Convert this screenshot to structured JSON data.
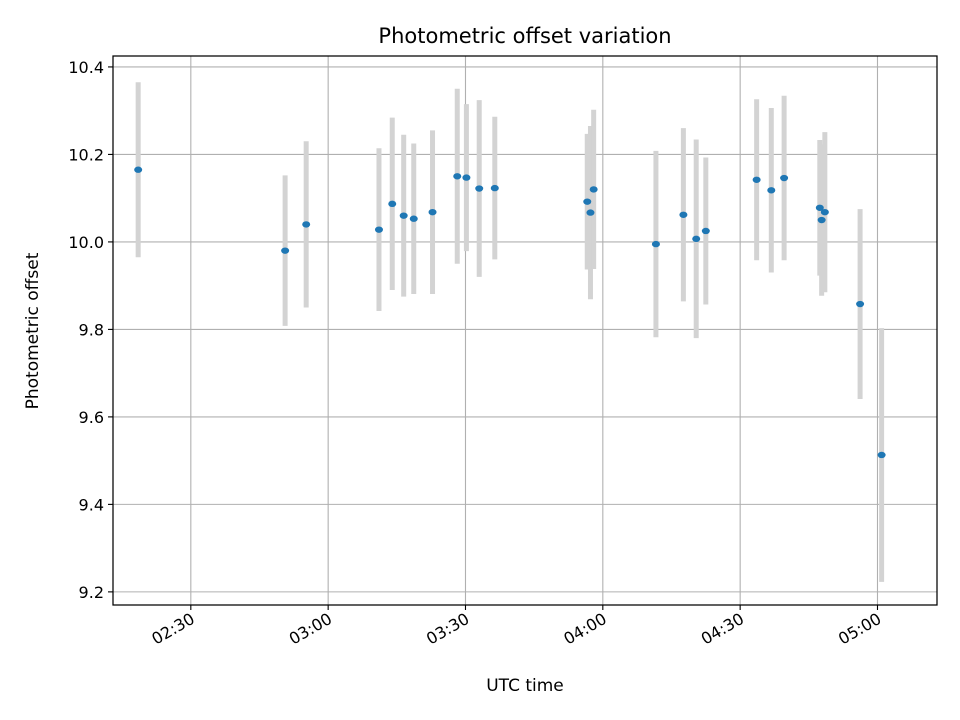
{
  "chart_data": {
    "type": "scatter",
    "title": "Photometric offset variation",
    "xlabel": "UTC time",
    "ylabel": "Photometric offset",
    "xlim_minutes": [
      133.0,
      313.0
    ],
    "ylim": [
      9.17,
      10.425
    ],
    "grid": true,
    "x_ticks": [
      {
        "label": "02:30",
        "minutes": 150
      },
      {
        "label": "03:00",
        "minutes": 180
      },
      {
        "label": "03:30",
        "minutes": 210
      },
      {
        "label": "04:00",
        "minutes": 240
      },
      {
        "label": "04:30",
        "minutes": 270
      },
      {
        "label": "05:00",
        "minutes": 300
      }
    ],
    "y_ticks": [
      {
        "label": "9.2",
        "value": 9.2
      },
      {
        "label": "9.4",
        "value": 9.4
      },
      {
        "label": "9.6",
        "value": 9.6
      },
      {
        "label": "9.8",
        "value": 9.8
      },
      {
        "label": "10.0",
        "value": 10.0
      },
      {
        "label": "10.2",
        "value": 10.2
      },
      {
        "label": "10.4",
        "value": 10.4
      }
    ],
    "point_color": "#1f77b4",
    "errorbar_color": "#d3d3d3",
    "points": [
      {
        "t": 138.5,
        "y": 10.165,
        "err": 0.2
      },
      {
        "t": 170.6,
        "y": 9.98,
        "err": 0.172
      },
      {
        "t": 175.2,
        "y": 10.04,
        "err": 0.19
      },
      {
        "t": 191.1,
        "y": 10.028,
        "err": 0.186
      },
      {
        "t": 194.0,
        "y": 10.087,
        "err": 0.197
      },
      {
        "t": 196.5,
        "y": 10.06,
        "err": 0.185
      },
      {
        "t": 198.7,
        "y": 10.053,
        "err": 0.172
      },
      {
        "t": 202.8,
        "y": 10.068,
        "err": 0.187
      },
      {
        "t": 208.2,
        "y": 10.15,
        "err": 0.2
      },
      {
        "t": 210.2,
        "y": 10.147,
        "err": 0.168
      },
      {
        "t": 213.0,
        "y": 10.122,
        "err": 0.202
      },
      {
        "t": 216.4,
        "y": 10.123,
        "err": 0.163
      },
      {
        "t": 236.6,
        "y": 10.092,
        "err": 0.155
      },
      {
        "t": 237.3,
        "y": 10.067,
        "err": 0.198
      },
      {
        "t": 238.0,
        "y": 10.12,
        "err": 0.182
      },
      {
        "t": 251.6,
        "y": 9.995,
        "err": 0.213
      },
      {
        "t": 257.6,
        "y": 10.062,
        "err": 0.198
      },
      {
        "t": 260.4,
        "y": 10.007,
        "err": 0.227
      },
      {
        "t": 262.5,
        "y": 10.025,
        "err": 0.168
      },
      {
        "t": 273.6,
        "y": 10.142,
        "err": 0.184
      },
      {
        "t": 276.8,
        "y": 10.118,
        "err": 0.188
      },
      {
        "t": 279.6,
        "y": 10.146,
        "err": 0.188
      },
      {
        "t": 287.4,
        "y": 10.078,
        "err": 0.155
      },
      {
        "t": 287.8,
        "y": 10.05,
        "err": 0.173
      },
      {
        "t": 288.5,
        "y": 10.068,
        "err": 0.183
      },
      {
        "t": 296.2,
        "y": 9.858,
        "err": 0.217
      },
      {
        "t": 300.9,
        "y": 9.513,
        "err": 0.29
      }
    ]
  }
}
